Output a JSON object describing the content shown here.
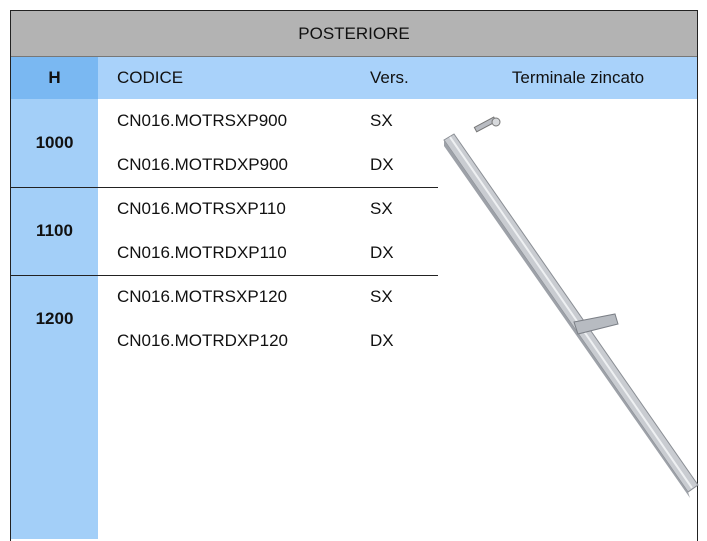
{
  "header": {
    "title": "POSTERIORE"
  },
  "columns": [
    "H",
    "CODICE",
    "Vers.",
    "Terminale zincato"
  ],
  "groups": [
    {
      "h": "1000",
      "rows": [
        [
          "CN016.MOTRSXP900",
          "SX"
        ],
        [
          "CN016.MOTRDXP900",
          "DX"
        ]
      ]
    },
    {
      "h": "1100",
      "rows": [
        [
          "CN016.MOTRSXP110",
          "SX"
        ],
        [
          "CN016.MOTRDXP110",
          "DX"
        ]
      ]
    },
    {
      "h": "1200",
      "rows": [
        [
          "CN016.MOTRSXP120",
          "SX"
        ],
        [
          "CN016.MOTRDXP120",
          "DX"
        ]
      ]
    }
  ]
}
